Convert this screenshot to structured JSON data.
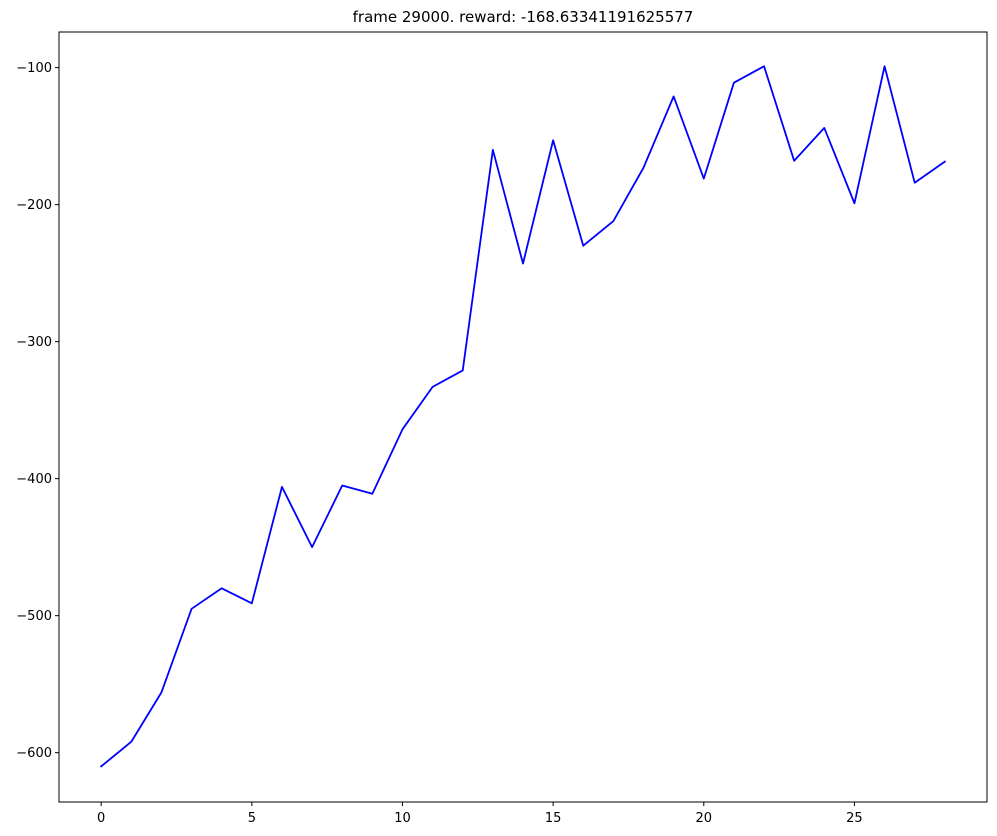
{
  "chart_data": {
    "type": "line",
    "title": "frame 29000. reward: -168.63341191625577",
    "xlabel": "",
    "ylabel": "",
    "xlim": [
      -1.4,
      29.4
    ],
    "ylim": [
      -636,
      -74
    ],
    "x_ticks": [
      0,
      5,
      10,
      15,
      20,
      25
    ],
    "x_tick_labels": [
      "0",
      "5",
      "10",
      "15",
      "20",
      "25"
    ],
    "y_ticks": [
      -100,
      -200,
      -300,
      -400,
      -500,
      -600
    ],
    "y_tick_labels": [
      "−100",
      "−200",
      "−300",
      "−400",
      "−500",
      "−600"
    ],
    "grid": false,
    "legend": "none",
    "series": [
      {
        "color": "#0000ff",
        "x": [
          0,
          1,
          2,
          3,
          4,
          5,
          6,
          7,
          8,
          9,
          10,
          11,
          12,
          13,
          14,
          15,
          16,
          17,
          18,
          19,
          20,
          21,
          22,
          23,
          24,
          25,
          26,
          27,
          28
        ],
        "values": [
          -610,
          -592,
          -556,
          -495,
          -480,
          -491,
          -406,
          -450,
          -405,
          -411,
          -364,
          -333,
          -321,
          -160,
          -243,
          -153,
          -230,
          -212,
          -173,
          -121,
          -181,
          -111,
          -99,
          -168,
          -144,
          -199,
          -99,
          -184,
          -168.63
        ]
      }
    ]
  }
}
